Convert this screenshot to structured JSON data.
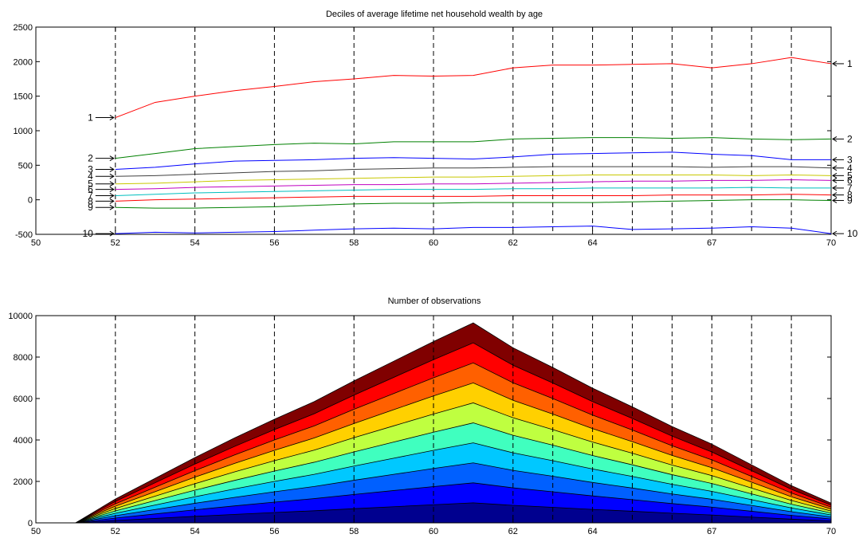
{
  "chart_data": [
    {
      "type": "line",
      "title": "Deciles of average lifetime net household wealth by age",
      "xlabel": "",
      "ylabel": "",
      "xlim": [
        50,
        70
      ],
      "ylim": [
        -500,
        2500
      ],
      "x_ticks": [
        50,
        52,
        54,
        56,
        58,
        60,
        62,
        64,
        67,
        70
      ],
      "y_ticks": [
        -500,
        0,
        500,
        1000,
        1500,
        2000,
        2500
      ],
      "vertical_dashed_lines_at": [
        52,
        54,
        56,
        58,
        60,
        62,
        63,
        64,
        65,
        66,
        67,
        68,
        69
      ],
      "x": [
        52,
        53,
        54,
        55,
        56,
        57,
        58,
        59,
        60,
        61,
        62,
        63,
        64,
        65,
        66,
        67,
        68,
        69,
        70
      ],
      "series": [
        {
          "label": "1",
          "color": "#ff0000",
          "values": [
            1190,
            1410,
            1500,
            1580,
            1640,
            1710,
            1750,
            1800,
            1790,
            1800,
            1910,
            1950,
            1950,
            1960,
            1970,
            1910,
            1970,
            2060,
            1970
          ]
        },
        {
          "label": "2",
          "color": "#008000",
          "values": [
            600,
            670,
            740,
            770,
            800,
            820,
            810,
            840,
            840,
            840,
            880,
            890,
            900,
            900,
            890,
            900,
            880,
            870,
            880
          ]
        },
        {
          "label": "3",
          "color": "#0000ff",
          "values": [
            440,
            470,
            520,
            560,
            570,
            580,
            600,
            610,
            600,
            590,
            620,
            660,
            670,
            680,
            690,
            660,
            640,
            580,
            580
          ]
        },
        {
          "label": "4",
          "color": "#404040",
          "values": [
            340,
            350,
            370,
            390,
            410,
            420,
            440,
            450,
            460,
            460,
            470,
            480,
            480,
            480,
            480,
            470,
            480,
            480,
            460
          ]
        },
        {
          "label": "5",
          "color": "#c8c800",
          "values": [
            230,
            240,
            260,
            280,
            290,
            300,
            310,
            320,
            330,
            330,
            340,
            350,
            360,
            360,
            360,
            360,
            350,
            360,
            350
          ]
        },
        {
          "label": "6",
          "color": "#c000c0",
          "values": [
            150,
            160,
            180,
            190,
            200,
            210,
            220,
            220,
            230,
            230,
            240,
            250,
            260,
            270,
            270,
            280,
            280,
            290,
            280
          ]
        },
        {
          "label": "7",
          "color": "#00bfbf",
          "values": [
            60,
            80,
            100,
            110,
            120,
            130,
            140,
            150,
            150,
            150,
            160,
            160,
            170,
            170,
            170,
            170,
            180,
            170,
            170
          ]
        },
        {
          "label": "8",
          "color": "#ff0000",
          "values": [
            -20,
            0,
            10,
            20,
            30,
            40,
            50,
            50,
            50,
            50,
            60,
            60,
            60,
            60,
            70,
            70,
            70,
            80,
            70
          ]
        },
        {
          "label": "9",
          "color": "#008000",
          "values": [
            -110,
            -120,
            -120,
            -110,
            -100,
            -80,
            -60,
            -50,
            -50,
            -40,
            -40,
            -40,
            -40,
            -30,
            -20,
            -10,
            0,
            0,
            -10
          ]
        },
        {
          "label": "10",
          "color": "#0000ff",
          "values": [
            -490,
            -470,
            -480,
            -470,
            -460,
            -440,
            -420,
            -410,
            -420,
            -400,
            -400,
            -390,
            -380,
            -430,
            -420,
            -410,
            -390,
            -410,
            -490
          ]
        }
      ],
      "left_labels": [
        "1",
        "2",
        "3",
        "4",
        "5",
        "6",
        "7",
        "8",
        "9",
        "10"
      ],
      "right_labels": [
        "1",
        "2",
        "3",
        "4",
        "5",
        "6",
        "7",
        "8",
        "9",
        "10"
      ]
    },
    {
      "type": "area",
      "title": "Number of observations",
      "xlabel": "",
      "ylabel": "",
      "xlim": [
        50,
        70
      ],
      "ylim": [
        0,
        10000
      ],
      "x_ticks": [
        50,
        52,
        54,
        56,
        58,
        60,
        62,
        64,
        67,
        70
      ],
      "y_ticks": [
        0,
        2000,
        4000,
        6000,
        8000,
        10000
      ],
      "vertical_dashed_lines_at": [
        52,
        54,
        56,
        58,
        60,
        62,
        63,
        64,
        65,
        66,
        67,
        68,
        69
      ],
      "stacked": true,
      "x": [
        51,
        52,
        53,
        54,
        55,
        56,
        57,
        58,
        59,
        60,
        61,
        62,
        63,
        64,
        65,
        66,
        67,
        68,
        69,
        70
      ],
      "total": [
        0,
        1150,
        2150,
        3150,
        4100,
        5000,
        5850,
        6850,
        7800,
        8750,
        9650,
        8450,
        7500,
        6500,
        5600,
        4650,
        3800,
        2800,
        1800,
        950
      ],
      "bands": 10,
      "band_colors": [
        "#00008f",
        "#0000ff",
        "#0060ff",
        "#00c8ff",
        "#40ffbf",
        "#bfff40",
        "#ffd000",
        "#ff6000",
        "#ff0000",
        "#800000"
      ]
    }
  ]
}
